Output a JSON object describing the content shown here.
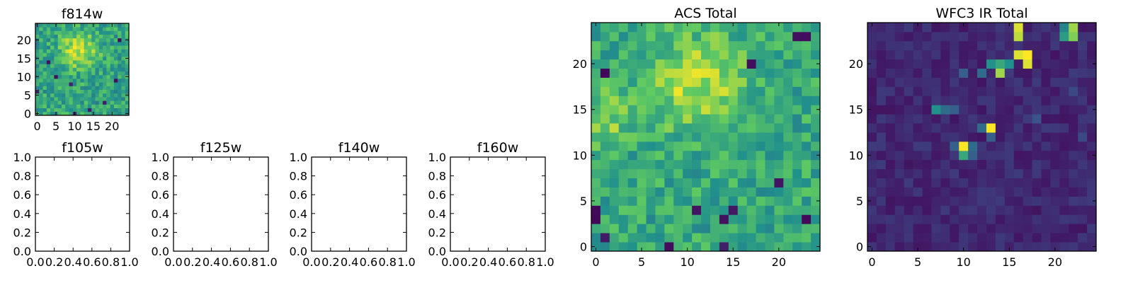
{
  "figure": {
    "colormap": "viridis",
    "colormap_stops": [
      "#440154",
      "#3b528b",
      "#21918c",
      "#5ec962",
      "#fde725"
    ]
  },
  "chart_data": [
    {
      "id": "f814w",
      "type": "heatmap",
      "title": "f814w",
      "grid_size": [
        25,
        25
      ],
      "xlim": [
        -0.5,
        24.5
      ],
      "ylim": [
        -0.5,
        24.5
      ],
      "xticks": [
        0,
        5,
        10,
        15,
        20
      ],
      "xtick_labels": [
        "0",
        "5",
        "10",
        "15",
        "20"
      ],
      "yticks": [
        0,
        5,
        10,
        15,
        20
      ],
      "ytick_labels": [
        "0",
        "5",
        "10",
        "15",
        "20"
      ],
      "color_range": [
        0,
        1
      ],
      "features": [
        {
          "kind": "gaussian_blob",
          "center": [
            11,
            17
          ],
          "sigma": 3.5,
          "amplitude": 0.35
        }
      ],
      "background_level": 0.58,
      "noise_level": 0.16,
      "low_pixels": [
        [
          0,
          6
        ],
        [
          14,
          1
        ],
        [
          10,
          0
        ],
        [
          22,
          20
        ],
        [
          5,
          10
        ],
        [
          18,
          3
        ],
        [
          3,
          14
        ],
        [
          21,
          9
        ],
        [
          9,
          8
        ]
      ]
    },
    {
      "id": "f105w",
      "type": "heatmap",
      "title": "f105w",
      "empty": true,
      "xlim": [
        0,
        1
      ],
      "ylim": [
        0,
        1
      ],
      "xticks": [
        0,
        0.2,
        0.4,
        0.6,
        0.8,
        1.0
      ],
      "xtick_labels": [
        "0.0",
        "0.2",
        "0.4",
        "0.6",
        "0.8",
        "1.0"
      ],
      "yticks": [
        0,
        0.2,
        0.4,
        0.6,
        0.8,
        1.0
      ],
      "ytick_labels": [
        "0.0",
        "0.2",
        "0.4",
        "0.6",
        "0.8",
        "1.0"
      ]
    },
    {
      "id": "f125w",
      "type": "heatmap",
      "title": "f125w",
      "empty": true,
      "xlim": [
        0,
        1
      ],
      "ylim": [
        0,
        1
      ],
      "xticks": [
        0,
        0.2,
        0.4,
        0.6,
        0.8,
        1.0
      ],
      "xtick_labels": [
        "0.0",
        "0.2",
        "0.4",
        "0.6",
        "0.8",
        "1.0"
      ],
      "yticks": [
        0,
        0.2,
        0.4,
        0.6,
        0.8,
        1.0
      ],
      "ytick_labels": [
        "0.0",
        "0.2",
        "0.4",
        "0.6",
        "0.8",
        "1.0"
      ]
    },
    {
      "id": "f140w",
      "type": "heatmap",
      "title": "f140w",
      "empty": true,
      "xlim": [
        0,
        1
      ],
      "ylim": [
        0,
        1
      ],
      "xticks": [
        0,
        0.2,
        0.4,
        0.6,
        0.8,
        1.0
      ],
      "xtick_labels": [
        "0.0",
        "0.2",
        "0.4",
        "0.6",
        "0.8",
        "1.0"
      ],
      "yticks": [
        0,
        0.2,
        0.4,
        0.6,
        0.8,
        1.0
      ],
      "ytick_labels": [
        "0.0",
        "0.2",
        "0.4",
        "0.6",
        "0.8",
        "1.0"
      ]
    },
    {
      "id": "f160w",
      "type": "heatmap",
      "title": "f160w",
      "empty": true,
      "xlim": [
        0,
        1
      ],
      "ylim": [
        0,
        1
      ],
      "xticks": [
        0,
        0.2,
        0.4,
        0.6,
        0.8,
        1.0
      ],
      "xtick_labels": [
        "0.0",
        "0.2",
        "0.4",
        "0.6",
        "0.8",
        "1.0"
      ],
      "yticks": [
        0,
        0.2,
        0.4,
        0.6,
        0.8,
        1.0
      ],
      "ytick_labels": [
        "0.0",
        "0.2",
        "0.4",
        "0.6",
        "0.8",
        "1.0"
      ]
    },
    {
      "id": "acs-total",
      "type": "heatmap",
      "title": "ACS Total",
      "grid_size": [
        25,
        25
      ],
      "xlim": [
        -0.5,
        24.5
      ],
      "ylim": [
        -0.5,
        24.5
      ],
      "xticks": [
        0,
        5,
        10,
        15,
        20
      ],
      "xtick_labels": [
        "0",
        "5",
        "10",
        "15",
        "20"
      ],
      "yticks": [
        0,
        5,
        10,
        15,
        20
      ],
      "ytick_labels": [
        "0",
        "5",
        "10",
        "15",
        "20"
      ],
      "color_range": [
        0,
        1
      ],
      "features": [
        {
          "kind": "gaussian_blob",
          "center": [
            11,
            18
          ],
          "sigma": 3.5,
          "amplitude": 0.3
        },
        {
          "kind": "gaussian_blob",
          "center": [
            1,
            14
          ],
          "sigma": 2.0,
          "amplitude": 0.2
        }
      ],
      "background_level": 0.6,
      "noise_level": 0.15,
      "low_pixels": [
        [
          0,
          3
        ],
        [
          0,
          4
        ],
        [
          1,
          19
        ],
        [
          11,
          4
        ],
        [
          14,
          3
        ],
        [
          17,
          20
        ],
        [
          23,
          3
        ],
        [
          22,
          23
        ],
        [
          23,
          23
        ],
        [
          1,
          1
        ],
        [
          8,
          0
        ],
        [
          14,
          0
        ],
        [
          20,
          7
        ],
        [
          15,
          4
        ]
      ]
    },
    {
      "id": "wfc3-ir-total",
      "type": "heatmap",
      "title": "WFC3 IR Total",
      "grid_size": [
        25,
        25
      ],
      "xlim": [
        -0.5,
        24.5
      ],
      "ylim": [
        -0.5,
        24.5
      ],
      "xticks": [
        0,
        5,
        10,
        15,
        20
      ],
      "xtick_labels": [
        "0",
        "5",
        "10",
        "15",
        "20"
      ],
      "yticks": [
        0,
        5,
        10,
        15,
        20
      ],
      "ytick_labels": [
        "0",
        "5",
        "10",
        "15",
        "20"
      ],
      "color_range": [
        0,
        1
      ],
      "features": [],
      "background_level": 0.12,
      "noise_level": 0.06,
      "bright_pixels": [
        {
          "x": 16,
          "y": 24,
          "value": 0.95
        },
        {
          "x": 16,
          "y": 23,
          "value": 0.9
        },
        {
          "x": 22,
          "y": 24,
          "value": 0.85
        },
        {
          "x": 22,
          "y": 23,
          "value": 0.8
        },
        {
          "x": 21,
          "y": 23,
          "value": 0.55
        },
        {
          "x": 21,
          "y": 24,
          "value": 0.45
        },
        {
          "x": 16,
          "y": 21,
          "value": 0.95
        },
        {
          "x": 17,
          "y": 21,
          "value": 1.0
        },
        {
          "x": 17,
          "y": 20,
          "value": 0.95
        },
        {
          "x": 15,
          "y": 20,
          "value": 0.5
        },
        {
          "x": 14,
          "y": 20,
          "value": 0.6
        },
        {
          "x": 14,
          "y": 19,
          "value": 0.85
        },
        {
          "x": 13,
          "y": 20,
          "value": 0.5
        },
        {
          "x": 12,
          "y": 19,
          "value": 0.35
        },
        {
          "x": 10,
          "y": 19,
          "value": 0.3
        },
        {
          "x": 7,
          "y": 15,
          "value": 0.5
        },
        {
          "x": 8,
          "y": 15,
          "value": 0.35
        },
        {
          "x": 9,
          "y": 15,
          "value": 0.3
        },
        {
          "x": 13,
          "y": 13,
          "value": 1.0
        },
        {
          "x": 12,
          "y": 13,
          "value": 0.35
        },
        {
          "x": 13,
          "y": 12,
          "value": 0.3
        },
        {
          "x": 10,
          "y": 11,
          "value": 1.0
        },
        {
          "x": 10,
          "y": 10,
          "value": 0.6
        },
        {
          "x": 9,
          "y": 11,
          "value": 0.3
        },
        {
          "x": 11,
          "y": 11,
          "value": 0.35
        },
        {
          "x": 11,
          "y": 10,
          "value": 0.3
        },
        {
          "x": 18,
          "y": 14,
          "value": 0.25
        },
        {
          "x": 22,
          "y": 17,
          "value": 0.22
        },
        {
          "x": 23,
          "y": 12,
          "value": 0.22
        }
      ]
    }
  ]
}
